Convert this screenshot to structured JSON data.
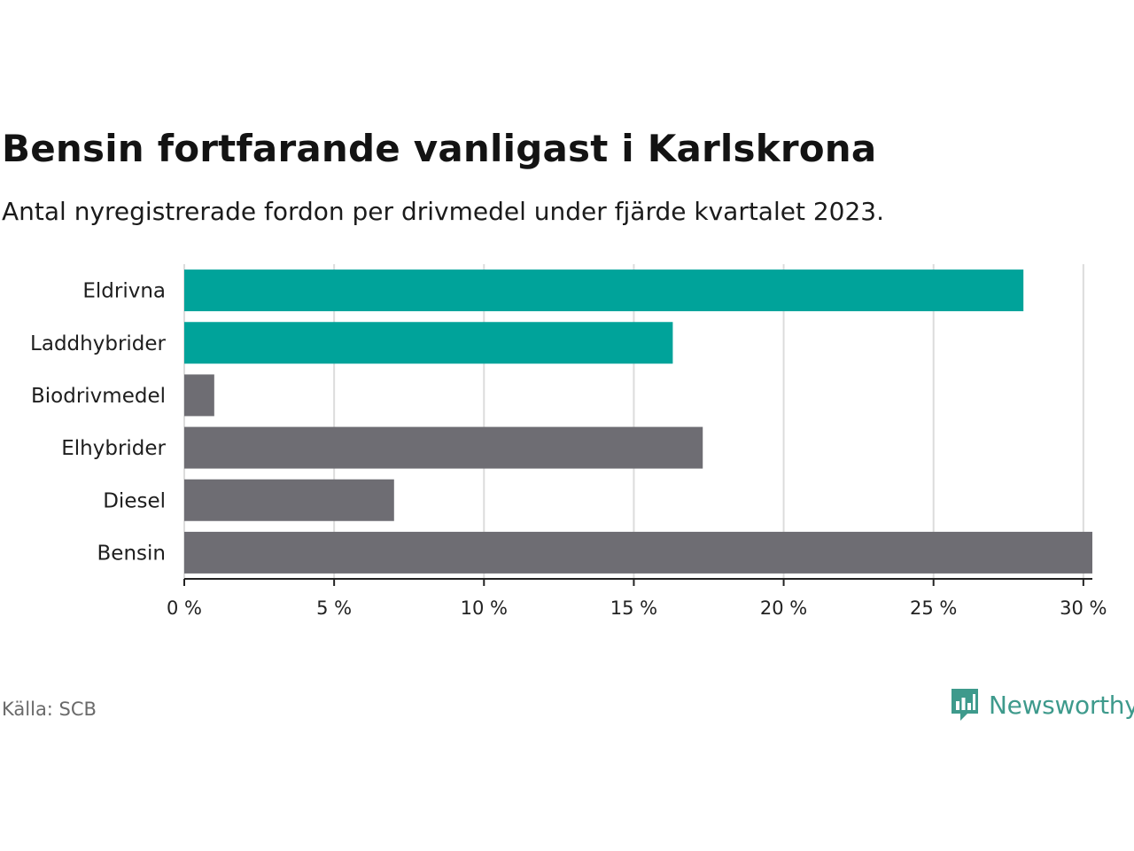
{
  "title": "Bensin fortfarande vanligast i Karlskrona",
  "subtitle": "Antal nyregistrerade fordon per drivmedel under fjärde kvartalet 2023.",
  "source": "Källa: SCB",
  "brand": {
    "name": "Newsworthy",
    "color": "#3e9a8c"
  },
  "colors": {
    "highlight": "#00a39a",
    "default": "#6e6d73",
    "grid": "#dcdcdc",
    "axis": "#222222"
  },
  "chart_data": {
    "type": "bar",
    "orientation": "horizontal",
    "title": "Bensin fortfarande vanligast i Karlskrona",
    "subtitle": "Antal nyregistrerade fordon per drivmedel under fjärde kvartalet 2023.",
    "categories": [
      "Eldrivna",
      "Laddhybrider",
      "Biodrivmedel",
      "Elhybrider",
      "Diesel",
      "Bensin"
    ],
    "values": [
      28.0,
      16.3,
      1.0,
      17.3,
      7.0,
      30.3
    ],
    "highlighted": [
      "Eldrivna",
      "Laddhybrider"
    ],
    "xlim": [
      0,
      30.3
    ],
    "xticks": [
      0,
      5,
      10,
      15,
      20,
      25,
      30
    ],
    "xtick_labels": [
      "0 %",
      "5 %",
      "10 %",
      "15 %",
      "20 %",
      "25 %",
      "30 %"
    ],
    "xlabel": "",
    "ylabel": "",
    "grid": true
  }
}
